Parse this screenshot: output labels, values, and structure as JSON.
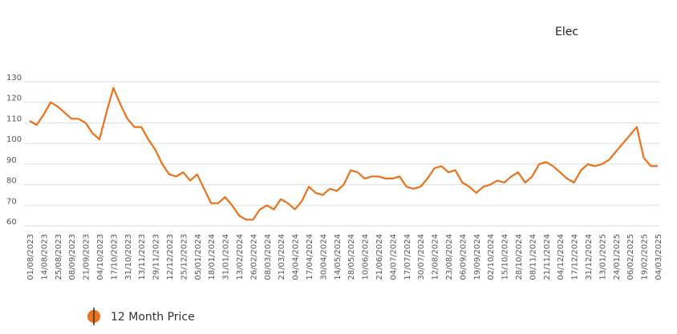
{
  "chart_data": {
    "type": "line",
    "title": "Elec",
    "categories": [
      "01/08/2023",
      null,
      "14/08/2023",
      null,
      "25/08/2023",
      null,
      "08/09/2023",
      null,
      "21/09/2023",
      null,
      "04/10/2023",
      null,
      "17/10/2023",
      null,
      "31/10/2023",
      null,
      "13/11/2023",
      null,
      "29/11/2023",
      null,
      "12/12/2023",
      null,
      "25/12/2023",
      null,
      "05/01/2024",
      null,
      "18/01/2024",
      null,
      "31/01/2024",
      null,
      "13/02/2024",
      null,
      "26/02/2024",
      null,
      "08/03/2024",
      null,
      "21/03/2024",
      null,
      "04/04/2024",
      null,
      "17/04/2024",
      null,
      "30/04/2024",
      null,
      "14/05/2024",
      null,
      "28/05/2024",
      null,
      "10/06/2024",
      null,
      "21/06/2024",
      null,
      "04/07/2024",
      null,
      "17/07/2024",
      null,
      "30/07/2024",
      null,
      "12/08/2024",
      null,
      "23/08/2024",
      null,
      "06/09/2024",
      null,
      "19/09/2024",
      null,
      "02/10/2024",
      null,
      "15/10/2024",
      null,
      "28/10/2024",
      null,
      "08/11/2024",
      null,
      "21/11/2024",
      null,
      "04/12/2024",
      null,
      "17/12/2024",
      null,
      "31/12/2024",
      null,
      "13/01/2025",
      null,
      "24/01/2025",
      null,
      "06/02/2025",
      null,
      "19/02/2025",
      null,
      "04/03/2025"
    ],
    "series": [
      {
        "name": "12 Month Price",
        "color": "#ec7118",
        "values": [
          111,
          109,
          114,
          120,
          118,
          115,
          112,
          112,
          110,
          105,
          102,
          115,
          127,
          119,
          112,
          108,
          108,
          102,
          97,
          90,
          85,
          84,
          86,
          82,
          85,
          78,
          71,
          71,
          74,
          70,
          65,
          63,
          63,
          68,
          70,
          68,
          73,
          71,
          68,
          72,
          79,
          76,
          75,
          78,
          77,
          80,
          87,
          86,
          83,
          84,
          84,
          83,
          83,
          84,
          79,
          78,
          79,
          83,
          88,
          89,
          86,
          87,
          81,
          79,
          76,
          79,
          80,
          82,
          81,
          84,
          86,
          81,
          84,
          90,
          91,
          89,
          86,
          83,
          81,
          87,
          90,
          89,
          90,
          92,
          96,
          100,
          104,
          108,
          93,
          89,
          89
        ]
      }
    ],
    "ylim": [
      60,
      130
    ],
    "yticks": [
      60,
      70,
      80,
      90,
      100,
      110,
      120,
      130
    ],
    "grid": true
  }
}
